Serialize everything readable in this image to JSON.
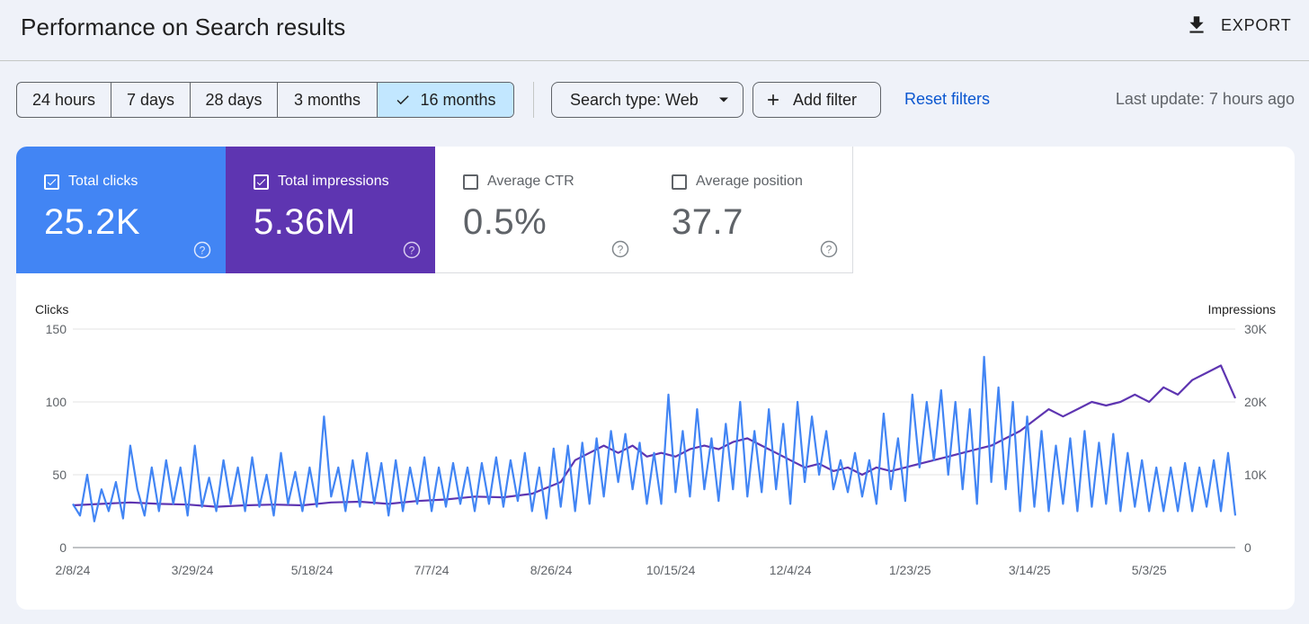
{
  "header": {
    "title": "Performance on Search results",
    "export_label": "EXPORT"
  },
  "filters": {
    "date_ranges": [
      {
        "label": "24 hours",
        "active": false
      },
      {
        "label": "7 days",
        "active": false
      },
      {
        "label": "28 days",
        "active": false
      },
      {
        "label": "3 months",
        "active": false
      },
      {
        "label": "16 months",
        "active": true
      }
    ],
    "search_type_label": "Search type: Web",
    "add_filter_label": "Add filter",
    "reset_label": "Reset filters",
    "last_update": "Last update: 7 hours ago"
  },
  "metrics": {
    "clicks": {
      "label": "Total clicks",
      "value": "25.2K",
      "checked": true
    },
    "impressions": {
      "label": "Total impressions",
      "value": "5.36M",
      "checked": true
    },
    "ctr": {
      "label": "Average CTR",
      "value": "0.5%",
      "checked": false
    },
    "position": {
      "label": "Average position",
      "value": "37.7",
      "checked": false
    }
  },
  "colors": {
    "clicks": "#4285f4",
    "impressions": "#5e35b1",
    "link": "#0b57d0",
    "active_chip": "#c2e7ff"
  },
  "chart_data": {
    "type": "line",
    "left_axis": {
      "label": "Clicks",
      "ticks": [
        "150",
        "100",
        "50",
        "0"
      ],
      "range": [
        0,
        150
      ]
    },
    "right_axis": {
      "label": "Impressions",
      "ticks": [
        "30K",
        "20K",
        "10K",
        "0"
      ],
      "range": [
        0,
        30000
      ]
    },
    "x_tick_labels": [
      "2/8/24",
      "3/29/24",
      "5/18/24",
      "7/7/24",
      "8/26/24",
      "10/15/24",
      "12/4/24",
      "1/23/25",
      "3/14/25",
      "5/3/25"
    ],
    "x_tick_days": [
      0,
      50,
      100,
      150,
      200,
      250,
      300,
      350,
      400,
      450
    ],
    "total_days": 486,
    "series": [
      {
        "name": "Clicks",
        "axis": "left",
        "color": "#4285f4",
        "points": [
          [
            0,
            30
          ],
          [
            3,
            22
          ],
          [
            6,
            50
          ],
          [
            9,
            18
          ],
          [
            12,
            40
          ],
          [
            15,
            25
          ],
          [
            18,
            45
          ],
          [
            21,
            20
          ],
          [
            24,
            70
          ],
          [
            27,
            40
          ],
          [
            30,
            22
          ],
          [
            33,
            55
          ],
          [
            36,
            25
          ],
          [
            39,
            60
          ],
          [
            42,
            30
          ],
          [
            45,
            55
          ],
          [
            48,
            22
          ],
          [
            51,
            70
          ],
          [
            54,
            28
          ],
          [
            57,
            48
          ],
          [
            60,
            25
          ],
          [
            63,
            60
          ],
          [
            66,
            30
          ],
          [
            69,
            55
          ],
          [
            72,
            25
          ],
          [
            75,
            62
          ],
          [
            78,
            28
          ],
          [
            81,
            50
          ],
          [
            84,
            22
          ],
          [
            87,
            65
          ],
          [
            90,
            30
          ],
          [
            93,
            52
          ],
          [
            96,
            25
          ],
          [
            99,
            55
          ],
          [
            102,
            28
          ],
          [
            105,
            90
          ],
          [
            108,
            35
          ],
          [
            111,
            55
          ],
          [
            114,
            25
          ],
          [
            117,
            60
          ],
          [
            120,
            28
          ],
          [
            123,
            65
          ],
          [
            126,
            30
          ],
          [
            129,
            58
          ],
          [
            132,
            22
          ],
          [
            135,
            60
          ],
          [
            138,
            25
          ],
          [
            141,
            55
          ],
          [
            144,
            30
          ],
          [
            147,
            62
          ],
          [
            150,
            25
          ],
          [
            153,
            55
          ],
          [
            156,
            28
          ],
          [
            159,
            58
          ],
          [
            162,
            30
          ],
          [
            165,
            55
          ],
          [
            168,
            25
          ],
          [
            171,
            58
          ],
          [
            174,
            30
          ],
          [
            177,
            62
          ],
          [
            180,
            28
          ],
          [
            183,
            60
          ],
          [
            186,
            32
          ],
          [
            189,
            65
          ],
          [
            192,
            25
          ],
          [
            195,
            55
          ],
          [
            198,
            20
          ],
          [
            201,
            68
          ],
          [
            204,
            28
          ],
          [
            207,
            70
          ],
          [
            210,
            25
          ],
          [
            213,
            72
          ],
          [
            216,
            30
          ],
          [
            219,
            75
          ],
          [
            222,
            35
          ],
          [
            225,
            80
          ],
          [
            228,
            45
          ],
          [
            231,
            78
          ],
          [
            234,
            40
          ],
          [
            237,
            72
          ],
          [
            240,
            30
          ],
          [
            243,
            65
          ],
          [
            246,
            30
          ],
          [
            249,
            105
          ],
          [
            252,
            38
          ],
          [
            255,
            80
          ],
          [
            258,
            35
          ],
          [
            261,
            95
          ],
          [
            264,
            40
          ],
          [
            267,
            75
          ],
          [
            270,
            32
          ],
          [
            273,
            85
          ],
          [
            276,
            40
          ],
          [
            279,
            100
          ],
          [
            282,
            35
          ],
          [
            285,
            80
          ],
          [
            288,
            38
          ],
          [
            291,
            95
          ],
          [
            294,
            40
          ],
          [
            297,
            85
          ],
          [
            300,
            30
          ],
          [
            303,
            100
          ],
          [
            306,
            45
          ],
          [
            309,
            90
          ],
          [
            312,
            50
          ],
          [
            315,
            80
          ],
          [
            318,
            40
          ],
          [
            321,
            60
          ],
          [
            324,
            38
          ],
          [
            327,
            65
          ],
          [
            330,
            35
          ],
          [
            333,
            60
          ],
          [
            336,
            30
          ],
          [
            339,
            92
          ],
          [
            342,
            40
          ],
          [
            345,
            75
          ],
          [
            348,
            32
          ],
          [
            351,
            105
          ],
          [
            354,
            55
          ],
          [
            357,
            100
          ],
          [
            360,
            60
          ],
          [
            363,
            108
          ],
          [
            366,
            50
          ],
          [
            369,
            100
          ],
          [
            372,
            40
          ],
          [
            375,
            95
          ],
          [
            378,
            30
          ],
          [
            381,
            131
          ],
          [
            384,
            45
          ],
          [
            387,
            110
          ],
          [
            390,
            40
          ],
          [
            393,
            100
          ],
          [
            396,
            25
          ],
          [
            399,
            90
          ],
          [
            402,
            28
          ],
          [
            405,
            80
          ],
          [
            408,
            25
          ],
          [
            411,
            70
          ],
          [
            414,
            30
          ],
          [
            417,
            75
          ],
          [
            420,
            25
          ],
          [
            423,
            80
          ],
          [
            426,
            28
          ],
          [
            429,
            72
          ],
          [
            432,
            30
          ],
          [
            435,
            78
          ],
          [
            438,
            25
          ],
          [
            441,
            65
          ],
          [
            444,
            28
          ],
          [
            447,
            60
          ],
          [
            450,
            25
          ],
          [
            453,
            55
          ],
          [
            456,
            25
          ],
          [
            459,
            55
          ],
          [
            462,
            25
          ],
          [
            465,
            58
          ],
          [
            468,
            25
          ],
          [
            471,
            55
          ],
          [
            474,
            28
          ],
          [
            477,
            60
          ],
          [
            480,
            25
          ],
          [
            483,
            65
          ],
          [
            486,
            22
          ]
        ]
      },
      {
        "name": "Impressions",
        "axis": "right",
        "color": "#5e35b1",
        "points": [
          [
            0,
            5800
          ],
          [
            12,
            6000
          ],
          [
            24,
            6200
          ],
          [
            36,
            6000
          ],
          [
            48,
            5900
          ],
          [
            60,
            5600
          ],
          [
            72,
            5800
          ],
          [
            84,
            5900
          ],
          [
            96,
            5800
          ],
          [
            108,
            6200
          ],
          [
            120,
            6300
          ],
          [
            132,
            6000
          ],
          [
            144,
            6400
          ],
          [
            156,
            6600
          ],
          [
            168,
            7000
          ],
          [
            180,
            6900
          ],
          [
            192,
            7400
          ],
          [
            204,
            9000
          ],
          [
            210,
            12000
          ],
          [
            216,
            13000
          ],
          [
            222,
            14000
          ],
          [
            228,
            13000
          ],
          [
            234,
            14000
          ],
          [
            240,
            12500
          ],
          [
            246,
            13000
          ],
          [
            252,
            12500
          ],
          [
            258,
            13500
          ],
          [
            264,
            14000
          ],
          [
            270,
            13500
          ],
          [
            276,
            14500
          ],
          [
            282,
            15000
          ],
          [
            288,
            14000
          ],
          [
            294,
            13000
          ],
          [
            300,
            12000
          ],
          [
            306,
            11000
          ],
          [
            312,
            11500
          ],
          [
            318,
            10500
          ],
          [
            324,
            11000
          ],
          [
            330,
            10000
          ],
          [
            336,
            11000
          ],
          [
            342,
            10500
          ],
          [
            348,
            11000
          ],
          [
            354,
            11500
          ],
          [
            360,
            12000
          ],
          [
            366,
            12500
          ],
          [
            372,
            13000
          ],
          [
            378,
            13500
          ],
          [
            384,
            14000
          ],
          [
            390,
            15000
          ],
          [
            396,
            16000
          ],
          [
            402,
            17500
          ],
          [
            408,
            19000
          ],
          [
            414,
            18000
          ],
          [
            420,
            19000
          ],
          [
            426,
            20000
          ],
          [
            432,
            19500
          ],
          [
            438,
            20000
          ],
          [
            444,
            21000
          ],
          [
            450,
            20000
          ],
          [
            456,
            22000
          ],
          [
            462,
            21000
          ],
          [
            468,
            23000
          ],
          [
            474,
            24000
          ],
          [
            480,
            25000
          ],
          [
            486,
            20500
          ]
        ]
      }
    ]
  }
}
